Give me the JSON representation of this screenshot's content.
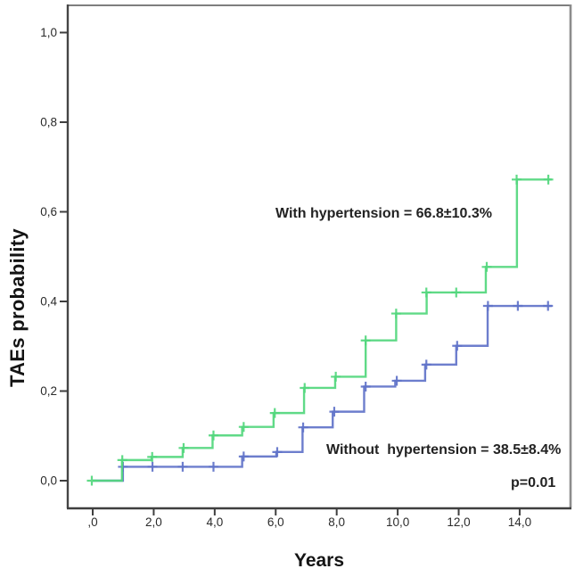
{
  "axes": {
    "x_title": "Years",
    "y_title": "TAEs probability",
    "x_tick_labels": [
      ",0",
      "2,0",
      "4,0",
      "6,0",
      "8,0",
      "10,0",
      "12,0",
      "14,0"
    ],
    "x_tick_values": [
      0,
      2,
      4,
      6,
      8,
      10,
      12,
      14
    ],
    "y_tick_labels": [
      "0,0",
      "0,2",
      "0,4",
      "0,6",
      "0,8",
      "1,0"
    ],
    "y_tick_values": [
      0,
      0.2,
      0.4,
      0.6,
      0.8,
      1.0
    ]
  },
  "annotations": {
    "with_hypertension": "With hypertension = 66.8±10.3%",
    "without_hypertension": "Without  hypertension = 38.5±8.4%",
    "p_value": "p=0.01"
  },
  "chart_data": {
    "type": "line",
    "subtype": "kaplan-meier-step",
    "title": "",
    "xlabel": "Years",
    "ylabel": "TAEs probability",
    "xlim": [
      -0.85,
      15.7
    ],
    "ylim": [
      -0.06,
      1.06
    ],
    "grid": false,
    "legend_position": "none",
    "censor_marker": "plus",
    "series": [
      {
        "name": "With hypertension",
        "estimate": "66.8±10.3%",
        "color": "#53d77d",
        "steps": [
          [
            0,
            0
          ],
          [
            0.96,
            0.046
          ],
          [
            1.93,
            0.053
          ],
          [
            2.95,
            0.073
          ],
          [
            3.93,
            0.101
          ],
          [
            4.9,
            0.12
          ],
          [
            5.93,
            0.151
          ],
          [
            6.93,
            0.207
          ],
          [
            7.95,
            0.232
          ],
          [
            8.95,
            0.313
          ],
          [
            9.95,
            0.373
          ],
          [
            10.95,
            0.42
          ],
          [
            12.89,
            0.477
          ],
          [
            13.91,
            0.672
          ]
        ],
        "end_x": 15.05,
        "censors": [
          [
            -0.03,
            0
          ],
          [
            0.97,
            0.046
          ],
          [
            1.95,
            0.053
          ],
          [
            2.98,
            0.073
          ],
          [
            3.96,
            0.101
          ],
          [
            4.95,
            0.12
          ],
          [
            5.97,
            0.151
          ],
          [
            6.95,
            0.207
          ],
          [
            7.97,
            0.232
          ],
          [
            8.95,
            0.313
          ],
          [
            9.95,
            0.373
          ],
          [
            10.94,
            0.42
          ],
          [
            11.92,
            0.42
          ],
          [
            12.92,
            0.477
          ],
          [
            13.9,
            0.672
          ],
          [
            14.94,
            0.672
          ]
        ]
      },
      {
        "name": "Without hypertension",
        "estimate": "38.5±8.4%",
        "color": "#6173c9",
        "steps": [
          [
            0,
            0
          ],
          [
            0.99,
            0.031
          ],
          [
            4.9,
            0.054
          ],
          [
            6.02,
            0.064
          ],
          [
            6.88,
            0.119
          ],
          [
            7.87,
            0.154
          ],
          [
            8.9,
            0.21
          ],
          [
            9.92,
            0.223
          ],
          [
            10.9,
            0.259
          ],
          [
            11.92,
            0.301
          ],
          [
            12.95,
            0.39
          ]
        ],
        "end_x": 15.05,
        "censors": [
          [
            0.99,
            0.031
          ],
          [
            1.96,
            0.031
          ],
          [
            2.95,
            0.031
          ],
          [
            3.96,
            0.031
          ],
          [
            4.95,
            0.054
          ],
          [
            6.05,
            0.064
          ],
          [
            6.9,
            0.119
          ],
          [
            7.92,
            0.154
          ],
          [
            8.95,
            0.21
          ],
          [
            9.97,
            0.223
          ],
          [
            10.94,
            0.259
          ],
          [
            11.95,
            0.301
          ],
          [
            12.96,
            0.39
          ],
          [
            13.94,
            0.39
          ],
          [
            14.93,
            0.39
          ]
        ]
      }
    ]
  }
}
